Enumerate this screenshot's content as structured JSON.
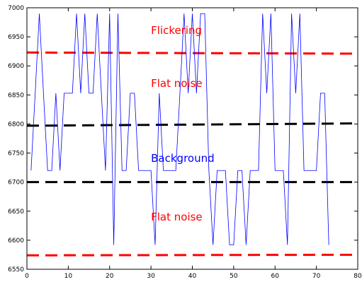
{
  "chart_data": {
    "type": "line",
    "title": "",
    "xlabel": "",
    "ylabel": "",
    "xlim": [
      0,
      80
    ],
    "ylim": [
      6550,
      7000
    ],
    "grid": false,
    "legend": "none",
    "x_ticks": [
      0,
      10,
      20,
      30,
      40,
      50,
      60,
      70,
      80
    ],
    "y_ticks": [
      6550,
      6600,
      6650,
      6700,
      6750,
      6800,
      6850,
      6900,
      6950,
      7000
    ],
    "series": [
      {
        "color": "#0000ff",
        "style": "solid",
        "x": [
          1,
          2,
          3,
          4,
          5,
          6,
          7,
          8,
          9,
          10,
          11,
          12,
          13,
          14,
          15,
          16,
          17,
          18,
          19,
          20,
          21,
          22,
          23,
          24,
          25,
          26,
          27,
          28,
          29,
          30,
          31,
          32,
          33,
          34,
          35,
          36,
          37,
          38,
          39,
          40,
          41,
          42,
          43,
          44,
          45,
          46,
          47,
          48,
          49,
          50,
          51,
          52,
          53,
          54,
          55,
          56,
          57,
          58,
          59,
          60,
          61,
          62,
          63,
          64,
          65,
          66,
          67,
          68,
          69,
          70,
          71,
          72,
          73
        ],
        "y": [
          6720,
          6853,
          6990,
          6853,
          6720,
          6720,
          6853,
          6720,
          6853,
          6853,
          6853,
          6990,
          6853,
          6990,
          6853,
          6853,
          6990,
          6853,
          6720,
          6990,
          6592,
          6990,
          6720,
          6720,
          6853,
          6853,
          6720,
          6720,
          6720,
          6720,
          6592,
          6853,
          6720,
          6720,
          6720,
          6720,
          6853,
          6990,
          6853,
          6990,
          6853,
          6990,
          6990,
          6720,
          6592,
          6720,
          6720,
          6720,
          6592,
          6592,
          6720,
          6720,
          6592,
          6720,
          6720,
          6720,
          6990,
          6853,
          6990,
          6720,
          6720,
          6720,
          6592,
          6990,
          6853,
          6990,
          6720,
          6720,
          6720,
          6720,
          6853,
          6853,
          6592
        ]
      }
    ],
    "reference_lines": [
      {
        "y": [
          6923,
          6921
        ],
        "color": "#ff0000",
        "style": "dashed"
      },
      {
        "y": [
          6797,
          6801
        ],
        "color": "#000000",
        "style": "dashed"
      },
      {
        "y": [
          6700,
          6700
        ],
        "color": "#000000",
        "style": "dashed"
      },
      {
        "y": [
          6574,
          6575
        ],
        "color": "#ff0000",
        "style": "dashed"
      }
    ],
    "annotations": [
      {
        "text": "Flickering",
        "x": 30,
        "y": 6955,
        "color": "#ff0000"
      },
      {
        "text": "Flat noise",
        "x": 30,
        "y": 6864,
        "color": "#ff0000"
      },
      {
        "text": "Background",
        "x": 30,
        "y": 6735,
        "color": "#0000ff"
      },
      {
        "text": "Flat noise",
        "x": 30,
        "y": 6634,
        "color": "#ff0000"
      }
    ]
  }
}
